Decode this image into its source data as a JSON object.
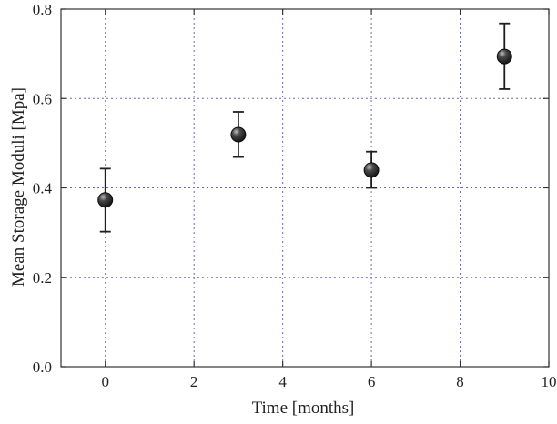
{
  "chart_data": {
    "type": "scatter",
    "title": "",
    "xlabel": "Time [months]",
    "ylabel": "Mean Storage Moduli [Mpa]",
    "xlim": [
      -1,
      10
    ],
    "ylim": [
      0,
      0.8
    ],
    "x_ticks": [
      0,
      2,
      4,
      6,
      8,
      10
    ],
    "y_ticks": [
      0.0,
      0.2,
      0.4,
      0.6,
      0.8
    ],
    "x_tick_labels": [
      "0",
      "2",
      "4",
      "6",
      "8",
      "10"
    ],
    "y_tick_labels": [
      "0.0",
      "0.2",
      "0.4",
      "0.6",
      "0.8"
    ],
    "grid": true,
    "grid_color": "#6a6ab8",
    "marker_color": "#1e1e1e",
    "series": [
      {
        "points": [
          {
            "x": 0,
            "y": 0.373,
            "err_low": 0.302,
            "err_high": 0.443
          },
          {
            "x": 3,
            "y": 0.519,
            "err_low": 0.469,
            "err_high": 0.57
          },
          {
            "x": 6,
            "y": 0.44,
            "err_low": 0.4,
            "err_high": 0.481
          },
          {
            "x": 9,
            "y": 0.694,
            "err_low": 0.621,
            "err_high": 0.768
          }
        ]
      }
    ]
  }
}
